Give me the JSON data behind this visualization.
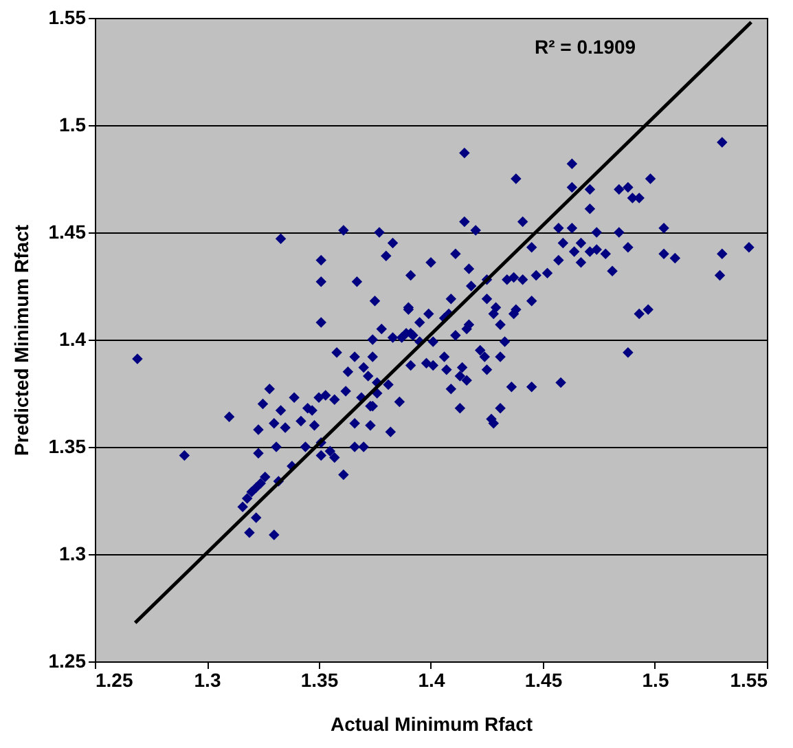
{
  "chart_data": {
    "type": "scatter",
    "xlabel": "Actual Minimum Rfact",
    "ylabel": "Predicted Minimum Rfact",
    "xlim": [
      1.25,
      1.55
    ],
    "ylim": [
      1.25,
      1.55
    ],
    "xticks": [
      1.25,
      1.3,
      1.35,
      1.4,
      1.45,
      1.5,
      1.55
    ],
    "yticks": [
      1.25,
      1.3,
      1.35,
      1.4,
      1.45,
      1.5,
      1.55
    ],
    "grid": "y",
    "annotations": [
      "R² = 0.1909"
    ],
    "series": [
      {
        "marker": "diamond",
        "color": "#000080",
        "x": [
          1.333,
          1.361,
          1.377,
          1.383,
          1.38,
          1.351,
          1.351,
          1.367,
          1.391,
          1.375,
          1.351,
          1.39,
          1.378,
          1.374,
          1.383,
          1.387,
          1.391,
          1.395,
          1.269,
          1.358,
          1.366,
          1.374,
          1.363,
          1.37,
          1.372,
          1.376,
          1.391,
          1.398,
          1.328,
          1.325,
          1.333,
          1.339,
          1.35,
          1.353,
          1.357,
          1.362,
          1.345,
          1.347,
          1.369,
          1.376,
          1.381,
          1.386,
          1.31,
          1.323,
          1.33,
          1.335,
          1.342,
          1.348,
          1.323,
          1.331,
          1.338,
          1.344,
          1.351,
          1.351,
          1.355,
          1.357,
          1.366,
          1.366,
          1.37,
          1.373,
          1.373,
          1.374,
          1.382,
          1.361,
          1.332,
          1.326,
          1.324,
          1.322,
          1.32,
          1.318,
          1.316,
          1.322,
          1.319,
          1.33,
          1.29,
          1.415,
          1.463,
          1.53,
          1.438,
          1.463,
          1.471,
          1.484,
          1.488,
          1.49,
          1.493,
          1.498,
          1.471,
          1.415,
          1.42,
          1.441,
          1.457,
          1.463,
          1.474,
          1.484,
          1.504,
          1.445,
          1.459,
          1.467,
          1.488,
          1.464,
          1.467,
          1.471,
          1.474,
          1.478,
          1.481,
          1.504,
          1.509,
          1.53,
          1.542,
          1.529,
          1.457,
          1.452,
          1.447,
          1.441,
          1.437,
          1.434,
          1.445,
          1.425,
          1.417,
          1.418,
          1.411,
          1.4,
          1.409,
          1.408,
          1.406,
          1.425,
          1.428,
          1.429,
          1.437,
          1.438,
          1.431,
          1.433,
          1.431,
          1.417,
          1.416,
          1.411,
          1.399,
          1.39,
          1.389,
          1.392,
          1.395,
          1.401,
          1.493,
          1.497,
          1.488,
          1.422,
          1.424,
          1.425,
          1.406,
          1.407,
          1.401,
          1.414,
          1.413,
          1.416,
          1.409,
          1.413,
          1.436,
          1.445,
          1.458,
          1.431,
          1.427,
          1.428
        ],
        "values": [
          1.447,
          1.451,
          1.45,
          1.445,
          1.439,
          1.437,
          1.427,
          1.427,
          1.43,
          1.418,
          1.408,
          1.415,
          1.405,
          1.4,
          1.401,
          1.401,
          1.403,
          1.408,
          1.391,
          1.394,
          1.392,
          1.392,
          1.385,
          1.387,
          1.383,
          1.38,
          1.388,
          1.389,
          1.377,
          1.37,
          1.367,
          1.373,
          1.373,
          1.374,
          1.372,
          1.376,
          1.368,
          1.367,
          1.373,
          1.375,
          1.379,
          1.371,
          1.364,
          1.358,
          1.361,
          1.359,
          1.362,
          1.36,
          1.347,
          1.35,
          1.341,
          1.35,
          1.352,
          1.346,
          1.348,
          1.345,
          1.361,
          1.35,
          1.35,
          1.36,
          1.369,
          1.369,
          1.357,
          1.337,
          1.334,
          1.336,
          1.333,
          1.331,
          1.329,
          1.326,
          1.322,
          1.317,
          1.31,
          1.309,
          1.346,
          1.487,
          1.482,
          1.492,
          1.475,
          1.471,
          1.47,
          1.47,
          1.471,
          1.466,
          1.466,
          1.475,
          1.461,
          1.455,
          1.451,
          1.455,
          1.452,
          1.452,
          1.45,
          1.45,
          1.452,
          1.443,
          1.445,
          1.445,
          1.443,
          1.441,
          1.436,
          1.441,
          1.442,
          1.44,
          1.432,
          1.44,
          1.438,
          1.44,
          1.443,
          1.43,
          1.437,
          1.431,
          1.43,
          1.428,
          1.429,
          1.428,
          1.418,
          1.428,
          1.433,
          1.425,
          1.44,
          1.436,
          1.419,
          1.412,
          1.41,
          1.419,
          1.412,
          1.415,
          1.412,
          1.414,
          1.407,
          1.399,
          1.392,
          1.407,
          1.405,
          1.402,
          1.412,
          1.414,
          1.403,
          1.402,
          1.399,
          1.399,
          1.412,
          1.414,
          1.394,
          1.395,
          1.392,
          1.386,
          1.392,
          1.386,
          1.388,
          1.387,
          1.383,
          1.381,
          1.377,
          1.368,
          1.378,
          1.378,
          1.38,
          1.368,
          1.363,
          1.361
        ]
      },
      {
        "type": "line",
        "marker": "none",
        "line_style": "solid",
        "color": "#000000",
        "x": [
          1.268,
          1.543
        ],
        "values": [
          1.268,
          1.548
        ]
      }
    ]
  }
}
